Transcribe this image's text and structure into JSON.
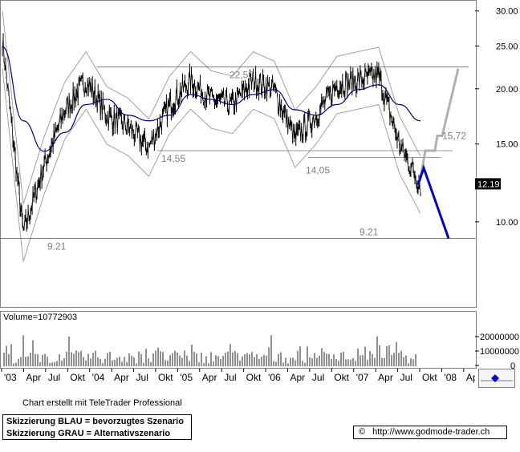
{
  "header": {
    "title_text": ""
  },
  "price_scale": {
    "ticks": [
      "30.00",
      "25.00",
      "20.00",
      "15.00",
      "10.00"
    ],
    "last_price": "12.19"
  },
  "volume": {
    "label": "Volume=10772903",
    "ticks": [
      "20000000",
      "10000000",
      "0"
    ]
  },
  "time_axis": {
    "labels": [
      "'03",
      "Apr",
      "Jul",
      "Okt",
      "'04",
      "Apr",
      "Jul",
      "Okt",
      "'05",
      "Apr",
      "Jul",
      "Okt",
      "'06",
      "Apr",
      "Jul",
      "Okt",
      "'07",
      "Apr",
      "Jul",
      "Okt",
      "'08",
      "Apr"
    ]
  },
  "annotations": {
    "level_2250": "22,50",
    "level_1455": "14,55",
    "level_1405": "14,05",
    "level_1572": "15,72",
    "level_921_left": "9.21",
    "level_921_right": "9.21"
  },
  "footer": {
    "credit": "Chart erstellt mit TeleTrader Professional",
    "legend_blue": "Skizzierung BLAU = bevorzugtes Szenario",
    "legend_grey": "Skizzierung GRAU = Alternativszenario",
    "url": "http://www.godmode-trader.ch",
    "copyright_symbol": "©"
  },
  "colors": {
    "price": "#000000",
    "moving_average": "#00008b",
    "bands": "#a0a0a0",
    "preferred_scenario": "#0000cc",
    "alternative_scenario": "#b0b0b0",
    "volume": "#606060",
    "last_price_bg": "#000000"
  },
  "chart_data": {
    "type": "line",
    "title": "",
    "xlabel": "",
    "ylabel": "",
    "x": [
      "2003-01",
      "2003-04",
      "2003-07",
      "2003-10",
      "2004-01",
      "2004-04",
      "2004-07",
      "2004-10",
      "2005-01",
      "2005-04",
      "2005-07",
      "2005-10",
      "2006-01",
      "2006-04",
      "2006-07",
      "2006-10",
      "2007-01",
      "2007-04",
      "2007-07",
      "2007-10",
      "2007-11"
    ],
    "ylim": [
      6.5,
      31.5
    ],
    "y_scale": "log",
    "series": [
      {
        "values": [
          26.0,
          9.5,
          13.5,
          18.0,
          21.0,
          17.5,
          16.5,
          14.8,
          18.5,
          21.0,
          19.0,
          18.5,
          21.0,
          20.0,
          15.5,
          17.5,
          20.5,
          21.0,
          21.5,
          15.0,
          12.19
        ]
      },
      {
        "values": [
          25.0,
          17.0,
          14.5,
          16.0,
          18.5,
          19.0,
          17.5,
          17.0,
          17.5,
          19.5,
          19.0,
          18.5,
          19.5,
          20.0,
          18.0,
          17.5,
          18.5,
          20.0,
          20.5,
          18.5,
          17.0
        ]
      }
    ],
    "horizontal_levels": [
      22.5,
      14.55,
      14.05,
      9.21
    ],
    "scenario_targets": {
      "preferred": 9.21,
      "alternative": 22.5,
      "intermediate": 15.72
    },
    "volume_ylim": [
      0,
      30000000
    ]
  }
}
